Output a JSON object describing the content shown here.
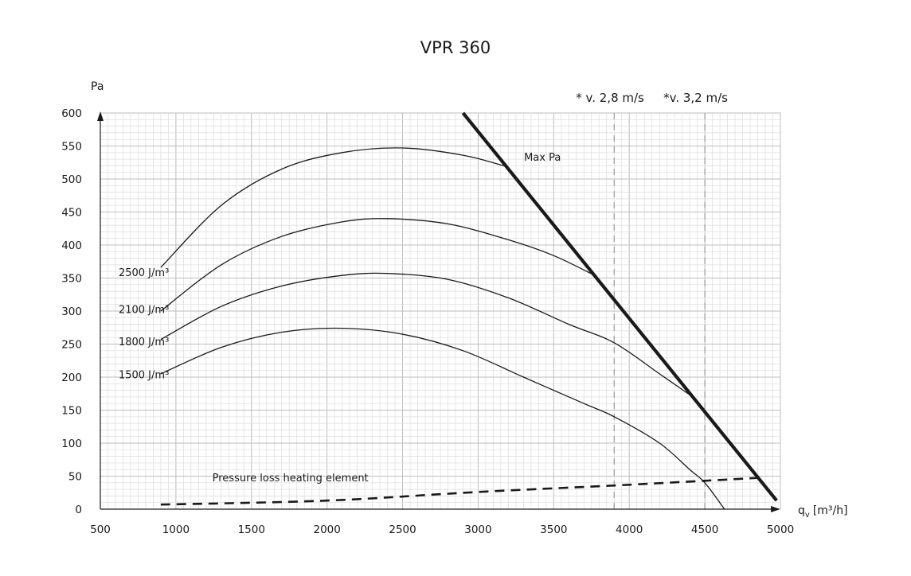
{
  "chart_data": {
    "type": "line",
    "title": "VPR 360",
    "ylabel": "Pa",
    "xlabel_base": "q",
    "xlabel_sub": "v",
    "xlabel_unit": "[m³/h]",
    "xlim": [
      500,
      5000
    ],
    "ylim": [
      0,
      600
    ],
    "x_ticks": [
      "500",
      "1000",
      "1500",
      "2000",
      "2500",
      "3000",
      "3500",
      "4000",
      "4500",
      "5000"
    ],
    "y_ticks": [
      "0",
      "50",
      "100",
      "150",
      "200",
      "250",
      "300",
      "350",
      "400",
      "450",
      "500",
      "550",
      "600"
    ],
    "grid": true,
    "series": [
      {
        "name": "2500 J/m³",
        "label": "2500 J/m³",
        "label_at": [
          600,
          353
        ],
        "points": [
          [
            900,
            366
          ],
          [
            1300,
            460
          ],
          [
            1700,
            515
          ],
          [
            2100,
            540
          ],
          [
            2500,
            547
          ],
          [
            2900,
            536
          ],
          [
            3200,
            518
          ]
        ]
      },
      {
        "name": "2100 J/m³",
        "label": "2100 J/m³",
        "label_at": [
          600,
          297
        ],
        "points": [
          [
            900,
            300
          ],
          [
            1300,
            370
          ],
          [
            1700,
            413
          ],
          [
            2100,
            435
          ],
          [
            2400,
            440
          ],
          [
            2800,
            432
          ],
          [
            3200,
            408
          ],
          [
            3500,
            384
          ],
          [
            3780,
            353
          ]
        ]
      },
      {
        "name": "1800 J/m³",
        "label": "1800 J/m³",
        "label_at": [
          600,
          248
        ],
        "points": [
          [
            900,
            257
          ],
          [
            1300,
            307
          ],
          [
            1700,
            338
          ],
          [
            2100,
            354
          ],
          [
            2400,
            357
          ],
          [
            2800,
            348
          ],
          [
            3200,
            320
          ],
          [
            3600,
            280
          ],
          [
            3900,
            252
          ],
          [
            4200,
            205
          ],
          [
            4420,
            170
          ]
        ]
      },
      {
        "name": "1500 J/m³",
        "label": "1500 J/m³",
        "label_at": [
          600,
          198
        ],
        "points": [
          [
            900,
            205
          ],
          [
            1300,
            245
          ],
          [
            1700,
            268
          ],
          [
            2100,
            274
          ],
          [
            2500,
            265
          ],
          [
            2900,
            240
          ],
          [
            3300,
            200
          ],
          [
            3700,
            160
          ],
          [
            3900,
            140
          ],
          [
            4200,
            100
          ],
          [
            4400,
            60
          ],
          [
            4500,
            40
          ],
          [
            4630,
            0
          ]
        ]
      }
    ],
    "max_pa_line": {
      "label": "Max Pa",
      "label_at": [
        3230,
        530
      ],
      "points": [
        [
          2900,
          600
        ],
        [
          4975,
          13
        ]
      ]
    },
    "pressure_loss": {
      "label": "Pressure loss heating element",
      "label_at": [
        1220,
        42
      ],
      "points": [
        [
          900,
          7
        ],
        [
          2000,
          13
        ],
        [
          3000,
          26
        ],
        [
          4000,
          37
        ],
        [
          4900,
          48
        ]
      ]
    },
    "velocity_lines": [
      {
        "x": 3900,
        "label": "* v. 2,8 m/s"
      },
      {
        "x": 4500,
        "label": "*v. 3,2 m/s"
      }
    ]
  }
}
